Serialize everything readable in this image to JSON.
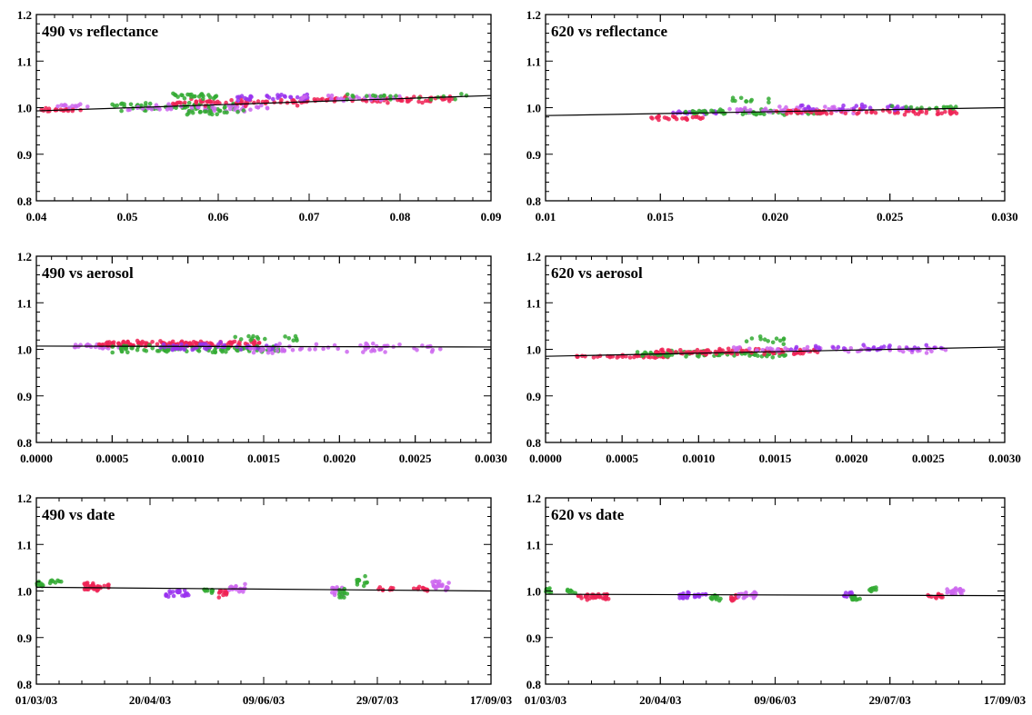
{
  "chart_data": [
    {
      "type": "scatter",
      "title": "490 vs reflectance",
      "x_ticks": [
        0.04,
        0.05,
        0.06,
        0.07,
        0.08,
        0.09
      ],
      "x_tick_labels": [
        "0.04",
        "0.05",
        "0.06",
        "0.07",
        "0.08",
        "0.09"
      ],
      "xlim": [
        0.04,
        0.09
      ],
      "y_ticks": [
        0.8,
        0.9,
        1.0,
        1.1,
        1.2
      ],
      "y_tick_labels": [
        "0.8",
        "0.9",
        "1.0",
        "1.1",
        "1.2"
      ],
      "ylim": [
        0.8,
        1.2
      ],
      "fit_line": {
        "x": [
          0.04,
          0.09
        ],
        "y": [
          0.993,
          1.026
        ]
      },
      "clusters": [
        {
          "color": "#ee2255",
          "x_range": [
            0.04,
            0.045
          ],
          "y_center": 0.995,
          "y_spread": 0.006,
          "count": 20
        },
        {
          "color": "#cc66ee",
          "x_range": [
            0.042,
            0.046
          ],
          "y_center": 1.003,
          "y_spread": 0.006,
          "count": 12
        },
        {
          "color": "#33aa33",
          "x_range": [
            0.048,
            0.062
          ],
          "y_center": 1.002,
          "y_spread": 0.012,
          "count": 60
        },
        {
          "color": "#cc66ee",
          "x_range": [
            0.05,
            0.066
          ],
          "y_center": 1.0,
          "y_spread": 0.012,
          "count": 50
        },
        {
          "color": "#ee2255",
          "x_range": [
            0.055,
            0.07
          ],
          "y_center": 1.012,
          "y_spread": 0.01,
          "count": 60
        },
        {
          "color": "#9933ee",
          "x_range": [
            0.062,
            0.07
          ],
          "y_center": 1.022,
          "y_spread": 0.01,
          "count": 30
        },
        {
          "color": "#33aa33",
          "x_range": [
            0.055,
            0.06
          ],
          "y_center": 1.025,
          "y_spread": 0.01,
          "count": 25
        },
        {
          "color": "#33aa33",
          "x_range": [
            0.056,
            0.063
          ],
          "y_center": 0.99,
          "y_spread": 0.008,
          "count": 20
        },
        {
          "color": "#ee2255",
          "x_range": [
            0.07,
            0.086
          ],
          "y_center": 1.018,
          "y_spread": 0.009,
          "count": 60
        },
        {
          "color": "#cc66ee",
          "x_range": [
            0.068,
            0.08
          ],
          "y_center": 1.02,
          "y_spread": 0.009,
          "count": 30
        },
        {
          "color": "#33aa33",
          "x_range": [
            0.072,
            0.088
          ],
          "y_center": 1.025,
          "y_spread": 0.01,
          "count": 20
        }
      ]
    },
    {
      "type": "scatter",
      "title": "620 vs reflectance",
      "x_ticks": [
        0.01,
        0.015,
        0.02,
        0.025,
        0.03
      ],
      "x_tick_labels": [
        "0.01",
        "0.015",
        "0.020",
        "0.025",
        "0.030"
      ],
      "xlim": [
        0.01,
        0.03
      ],
      "y_ticks": [
        0.8,
        0.9,
        1.0,
        1.1,
        1.2
      ],
      "y_tick_labels": [
        "0.8",
        "0.9",
        "1.0",
        "1.1",
        "1.2"
      ],
      "ylim": [
        0.8,
        1.2
      ],
      "fit_line": {
        "x": [
          0.01,
          0.03
        ],
        "y": [
          0.983,
          1.0
        ]
      },
      "clusters": [
        {
          "color": "#ee2255",
          "x_range": [
            0.0145,
            0.017
          ],
          "y_center": 0.978,
          "y_spread": 0.006,
          "count": 25
        },
        {
          "color": "#9933ee",
          "x_range": [
            0.0155,
            0.0175
          ],
          "y_center": 0.99,
          "y_spread": 0.006,
          "count": 20
        },
        {
          "color": "#33aa33",
          "x_range": [
            0.016,
            0.022
          ],
          "y_center": 0.99,
          "y_spread": 0.008,
          "count": 60
        },
        {
          "color": "#cc66ee",
          "x_range": [
            0.018,
            0.024
          ],
          "y_center": 0.995,
          "y_spread": 0.01,
          "count": 50
        },
        {
          "color": "#ee2255",
          "x_range": [
            0.02,
            0.028
          ],
          "y_center": 0.99,
          "y_spread": 0.008,
          "count": 70
        },
        {
          "color": "#9933ee",
          "x_range": [
            0.021,
            0.026
          ],
          "y_center": 1.0,
          "y_spread": 0.01,
          "count": 30
        },
        {
          "color": "#33aa33",
          "x_range": [
            0.018,
            0.02
          ],
          "y_center": 1.015,
          "y_spread": 0.008,
          "count": 10
        },
        {
          "color": "#33aa33",
          "x_range": [
            0.025,
            0.028
          ],
          "y_center": 1.0,
          "y_spread": 0.006,
          "count": 15
        }
      ]
    },
    {
      "type": "scatter",
      "title": "490 vs aerosol",
      "x_ticks": [
        0.0,
        0.0005,
        0.001,
        0.0015,
        0.002,
        0.0025,
        0.003
      ],
      "x_tick_labels": [
        "0.0000",
        "0.0005",
        "0.0010",
        "0.0015",
        "0.0020",
        "0.0025",
        "0.0030"
      ],
      "xlim": [
        0.0,
        0.003
      ],
      "y_ticks": [
        0.8,
        0.9,
        1.0,
        1.1,
        1.2
      ],
      "y_tick_labels": [
        "0.8",
        "0.9",
        "1.0",
        "1.1",
        "1.2"
      ],
      "ylim": [
        0.8,
        1.2
      ],
      "fit_line": {
        "x": [
          0.0,
          0.003
        ],
        "y": [
          1.007,
          1.005
        ]
      },
      "clusters": [
        {
          "color": "#cc66ee",
          "x_range": [
            0.00025,
            0.0006
          ],
          "y_center": 1.005,
          "y_spread": 0.008,
          "count": 30
        },
        {
          "color": "#ee2255",
          "x_range": [
            0.0004,
            0.0015
          ],
          "y_center": 1.012,
          "y_spread": 0.009,
          "count": 120
        },
        {
          "color": "#33aa33",
          "x_range": [
            0.0005,
            0.0016
          ],
          "y_center": 1.0,
          "y_spread": 0.012,
          "count": 90
        },
        {
          "color": "#9933ee",
          "x_range": [
            0.0008,
            0.0016
          ],
          "y_center": 1.005,
          "y_spread": 0.012,
          "count": 50
        },
        {
          "color": "#cc66ee",
          "x_range": [
            0.0014,
            0.0027
          ],
          "y_center": 1.002,
          "y_spread": 0.014,
          "count": 60
        },
        {
          "color": "#33aa33",
          "x_range": [
            0.0013,
            0.0018
          ],
          "y_center": 1.025,
          "y_spread": 0.01,
          "count": 15
        }
      ]
    },
    {
      "type": "scatter",
      "title": "620 vs aerosol",
      "x_ticks": [
        0.0,
        0.0005,
        0.001,
        0.0015,
        0.002,
        0.0025,
        0.003
      ],
      "x_tick_labels": [
        "0.0000",
        "0.0005",
        "0.0010",
        "0.0015",
        "0.0020",
        "0.0025",
        "0.0030"
      ],
      "xlim": [
        0.0,
        0.003
      ],
      "y_ticks": [
        0.8,
        0.9,
        1.0,
        1.1,
        1.2
      ],
      "y_tick_labels": [
        "0.8",
        "0.9",
        "1.0",
        "1.1",
        "1.2"
      ],
      "ylim": [
        0.8,
        1.2
      ],
      "fit_line": {
        "x": [
          0.0,
          0.003
        ],
        "y": [
          0.985,
          1.005
        ]
      },
      "clusters": [
        {
          "color": "#ee2255",
          "x_range": [
            0.0002,
            0.0008
          ],
          "y_center": 0.985,
          "y_spread": 0.005,
          "count": 40
        },
        {
          "color": "#33aa33",
          "x_range": [
            0.0006,
            0.0016
          ],
          "y_center": 0.99,
          "y_spread": 0.01,
          "count": 80
        },
        {
          "color": "#ee2255",
          "x_range": [
            0.0007,
            0.0018
          ],
          "y_center": 0.995,
          "y_spread": 0.01,
          "count": 90
        },
        {
          "color": "#cc66ee",
          "x_range": [
            0.0012,
            0.0027
          ],
          "y_center": 1.0,
          "y_spread": 0.01,
          "count": 60
        },
        {
          "color": "#9933ee",
          "x_range": [
            0.0016,
            0.0026
          ],
          "y_center": 1.003,
          "y_spread": 0.008,
          "count": 30
        },
        {
          "color": "#33aa33",
          "x_range": [
            0.0013,
            0.0016
          ],
          "y_center": 1.02,
          "y_spread": 0.01,
          "count": 12
        }
      ]
    },
    {
      "type": "scatter",
      "title": "490 vs date",
      "x_ticks": [
        "2003-03-01",
        "2003-04-20",
        "2003-06-09",
        "2003-07-29",
        "2003-09-17"
      ],
      "x_tick_labels": [
        "01/03/03",
        "20/04/03",
        "09/06/03",
        "29/07/03",
        "17/09/03"
      ],
      "xlim": [
        "2003-03-01",
        "2003-09-17"
      ],
      "y_ticks": [
        0.8,
        0.9,
        1.0,
        1.1,
        1.2
      ],
      "y_tick_labels": [
        "0.8",
        "0.9",
        "1.0",
        "1.1",
        "1.2"
      ],
      "ylim": [
        0.8,
        1.2
      ],
      "fit_line": {
        "x": [
          "2003-03-01",
          "2003-09-17"
        ],
        "y": [
          1.008,
          1.0
        ]
      },
      "clusters": [
        {
          "color": "#33aa33",
          "x_range": [
            "2003-03-01",
            "2003-03-04"
          ],
          "y_center": 1.015,
          "y_spread": 0.015,
          "count": 10
        },
        {
          "color": "#33aa33",
          "x_range": [
            "2003-03-07",
            "2003-03-12"
          ],
          "y_center": 1.02,
          "y_spread": 0.01,
          "count": 8
        },
        {
          "color": "#ee2255",
          "x_range": [
            "2003-03-22",
            "2003-04-02"
          ],
          "y_center": 1.01,
          "y_spread": 0.015,
          "count": 35
        },
        {
          "color": "#9933ee",
          "x_range": [
            "2003-04-27",
            "2003-05-07"
          ],
          "y_center": 0.995,
          "y_spread": 0.012,
          "count": 25
        },
        {
          "color": "#33aa33",
          "x_range": [
            "2003-05-13",
            "2003-05-18"
          ],
          "y_center": 1.0,
          "y_spread": 0.01,
          "count": 10
        },
        {
          "color": "#ee2255",
          "x_range": [
            "2003-05-20",
            "2003-05-24"
          ],
          "y_center": 0.995,
          "y_spread": 0.012,
          "count": 15
        },
        {
          "color": "#cc66ee",
          "x_range": [
            "2003-05-24",
            "2003-06-01"
          ],
          "y_center": 1.005,
          "y_spread": 0.012,
          "count": 20
        },
        {
          "color": "#cc66ee",
          "x_range": [
            "2003-07-09",
            "2003-07-14"
          ],
          "y_center": 1.0,
          "y_spread": 0.015,
          "count": 15
        },
        {
          "color": "#33aa33",
          "x_range": [
            "2003-07-12",
            "2003-07-16"
          ],
          "y_center": 0.995,
          "y_spread": 0.012,
          "count": 12
        },
        {
          "color": "#33aa33",
          "x_range": [
            "2003-07-20",
            "2003-07-25"
          ],
          "y_center": 1.02,
          "y_spread": 0.015,
          "count": 12
        },
        {
          "color": "#ee2255",
          "x_range": [
            "2003-07-29",
            "2003-08-05"
          ],
          "y_center": 1.005,
          "y_spread": 0.008,
          "count": 8
        },
        {
          "color": "#ee2255",
          "x_range": [
            "2003-08-14",
            "2003-08-22"
          ],
          "y_center": 1.005,
          "y_spread": 0.008,
          "count": 12
        },
        {
          "color": "#cc66ee",
          "x_range": [
            "2003-08-22",
            "2003-08-30"
          ],
          "y_center": 1.01,
          "y_spread": 0.015,
          "count": 25
        }
      ]
    },
    {
      "type": "scatter",
      "title": "620 vs date",
      "x_ticks": [
        "2003-03-01",
        "2003-04-20",
        "2003-06-09",
        "2003-07-29",
        "2003-09-17"
      ],
      "x_tick_labels": [
        "01/03/03",
        "20/04/03",
        "09/06/03",
        "29/07/03",
        "17/09/03"
      ],
      "xlim": [
        "2003-03-01",
        "2003-09-17"
      ],
      "y_ticks": [
        0.8,
        0.9,
        1.0,
        1.1,
        1.2
      ],
      "y_tick_labels": [
        "0.8",
        "0.9",
        "1.0",
        "1.1",
        "1.2"
      ],
      "ylim": [
        0.8,
        1.2
      ],
      "fit_line": {
        "x": [
          "2003-03-01",
          "2003-09-17"
        ],
        "y": [
          0.993,
          0.99
        ]
      },
      "clusters": [
        {
          "color": "#33aa33",
          "x_range": [
            "2003-03-01",
            "2003-03-04"
          ],
          "y_center": 1.0,
          "y_spread": 0.01,
          "count": 8
        },
        {
          "color": "#33aa33",
          "x_range": [
            "2003-03-10",
            "2003-03-14"
          ],
          "y_center": 1.0,
          "y_spread": 0.01,
          "count": 8
        },
        {
          "color": "#ee2255",
          "x_range": [
            "2003-03-15",
            "2003-03-29"
          ],
          "y_center": 0.988,
          "y_spread": 0.01,
          "count": 35
        },
        {
          "color": "#9933ee",
          "x_range": [
            "2003-04-28",
            "2003-05-10"
          ],
          "y_center": 0.99,
          "y_spread": 0.01,
          "count": 30
        },
        {
          "color": "#33aa33",
          "x_range": [
            "2003-05-12",
            "2003-05-18"
          ],
          "y_center": 0.988,
          "y_spread": 0.01,
          "count": 12
        },
        {
          "color": "#ee2255",
          "x_range": [
            "2003-05-20",
            "2003-05-24"
          ],
          "y_center": 0.985,
          "y_spread": 0.01,
          "count": 12
        },
        {
          "color": "#cc66ee",
          "x_range": [
            "2003-05-24",
            "2003-06-01"
          ],
          "y_center": 0.992,
          "y_spread": 0.01,
          "count": 20
        },
        {
          "color": "#9933ee",
          "x_range": [
            "2003-07-09",
            "2003-07-14"
          ],
          "y_center": 0.99,
          "y_spread": 0.01,
          "count": 12
        },
        {
          "color": "#33aa33",
          "x_range": [
            "2003-07-12",
            "2003-07-16"
          ],
          "y_center": 0.985,
          "y_spread": 0.008,
          "count": 10
        },
        {
          "color": "#33aa33",
          "x_range": [
            "2003-07-20",
            "2003-07-25"
          ],
          "y_center": 1.005,
          "y_spread": 0.012,
          "count": 10
        },
        {
          "color": "#ee2255",
          "x_range": [
            "2003-08-14",
            "2003-08-22"
          ],
          "y_center": 0.99,
          "y_spread": 0.008,
          "count": 12
        },
        {
          "color": "#cc66ee",
          "x_range": [
            "2003-08-22",
            "2003-08-30"
          ],
          "y_center": 1.0,
          "y_spread": 0.012,
          "count": 22
        }
      ]
    }
  ]
}
